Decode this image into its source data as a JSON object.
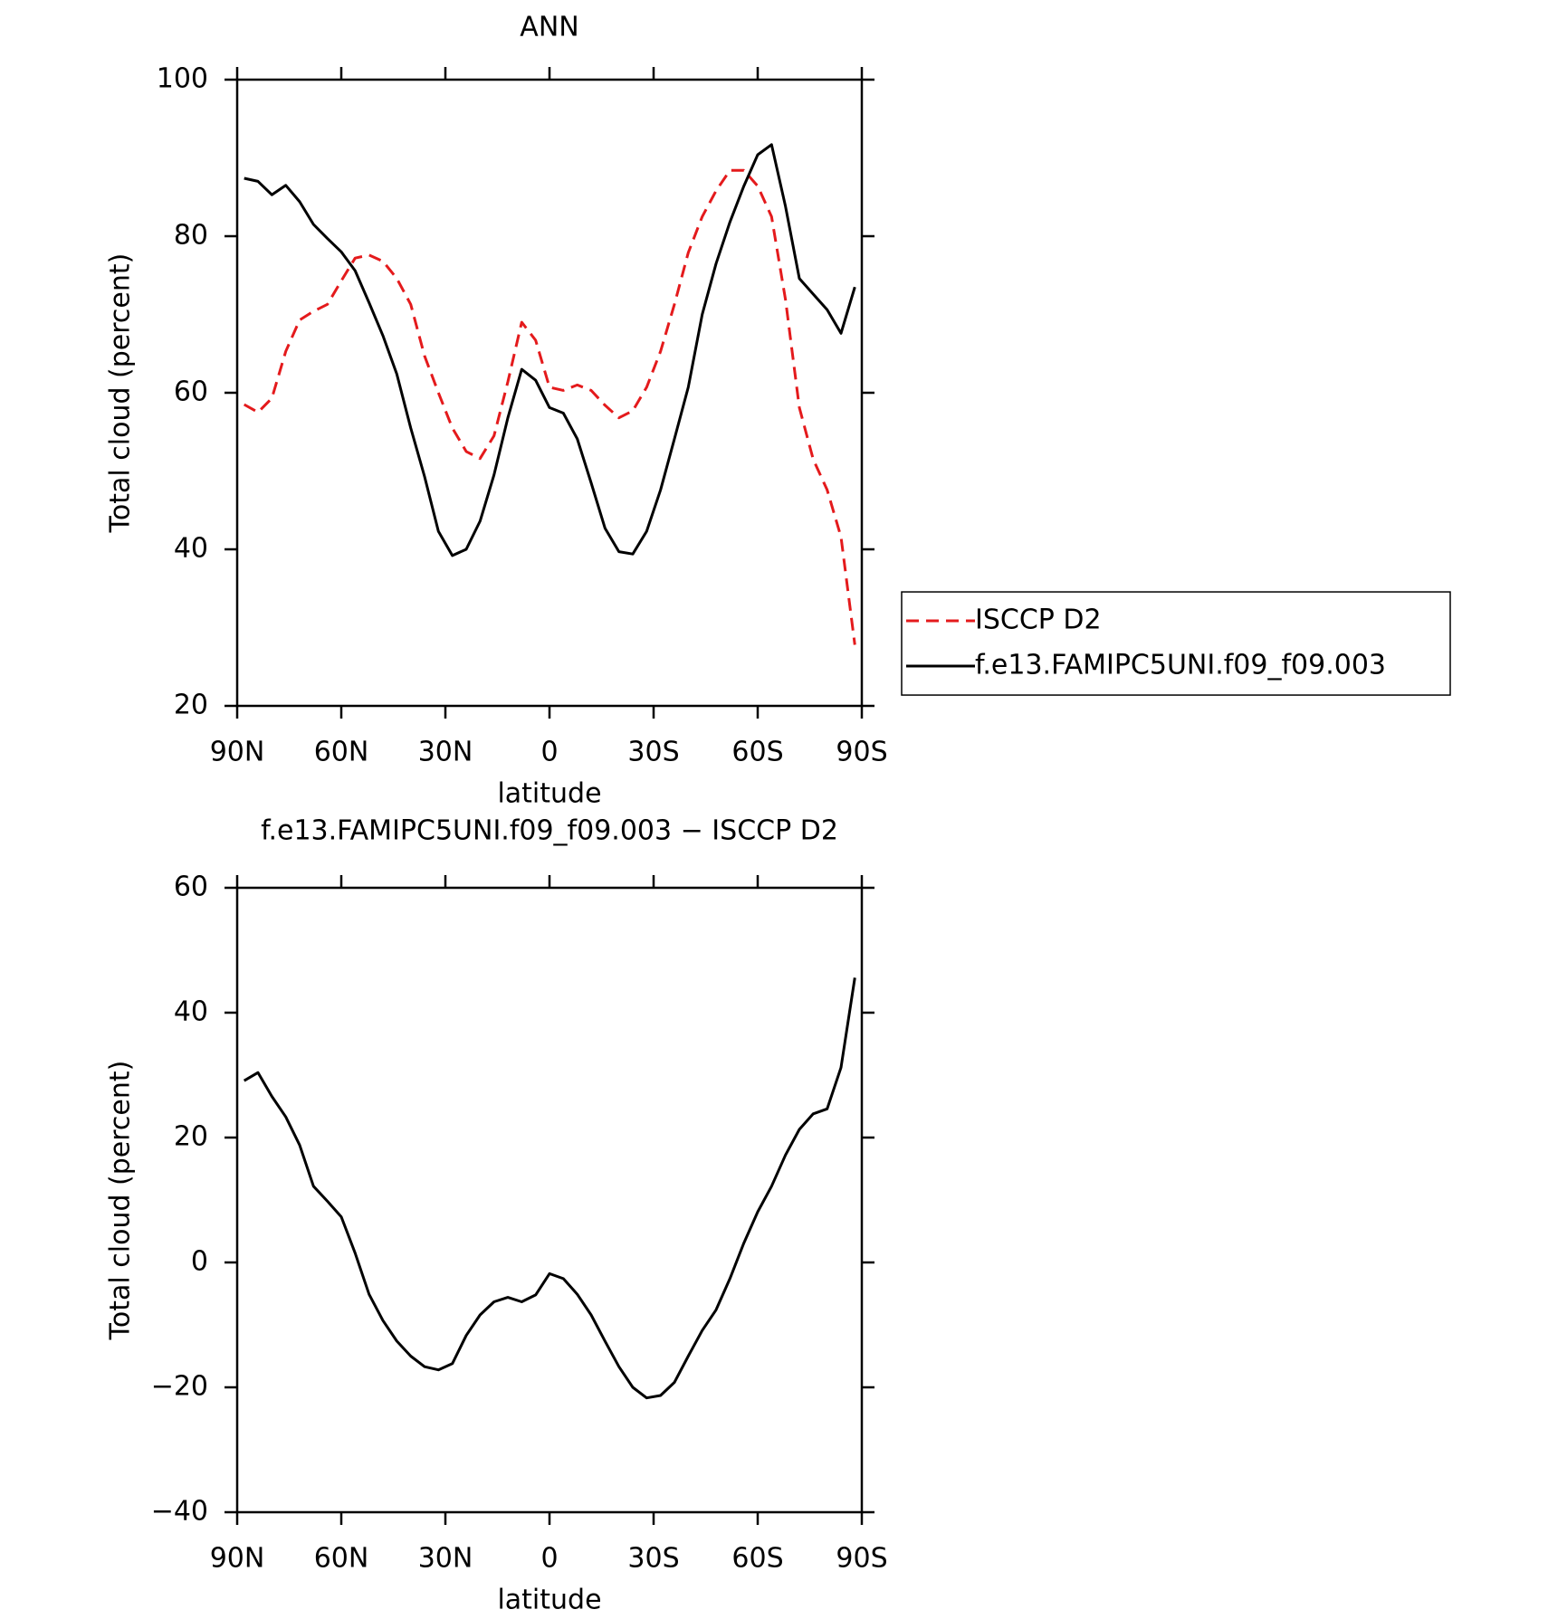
{
  "chart_data": [
    {
      "type": "line",
      "title": "ANN",
      "x_label": "latitude",
      "y_label": "Total cloud (percent)",
      "x": [
        88,
        84,
        80,
        76,
        72,
        68,
        64,
        60,
        56,
        52,
        48,
        44,
        40,
        36,
        32,
        28,
        24,
        20,
        16,
        12,
        8,
        4,
        0,
        -4,
        -8,
        -12,
        -16,
        -20,
        -24,
        -28,
        -32,
        -36,
        -40,
        -44,
        -48,
        -52,
        -56,
        -60,
        -64,
        -68,
        -72,
        -76,
        -80,
        -84,
        -88
      ],
      "xlim": [
        90,
        -90
      ],
      "xticks": [
        {
          "value": 90,
          "label": "90N"
        },
        {
          "value": 60,
          "label": "60N"
        },
        {
          "value": 30,
          "label": "30N"
        },
        0,
        {
          "value": -30,
          "label": "30S"
        },
        {
          "value": -60,
          "label": "60S"
        },
        {
          "value": -90,
          "label": "90S"
        }
      ],
      "ylim": [
        20,
        100
      ],
      "yticks": [
        20,
        40,
        60,
        80,
        100
      ],
      "legend": "right",
      "series": [
        {
          "name": "ISCCP D2",
          "color": "#e41a1c",
          "dashed": true,
          "values": [
            58.5,
            57.5,
            59.3,
            65.3,
            69.3,
            70.4,
            71.3,
            74.3,
            77.2,
            77.6,
            76.8,
            74.6,
            71.3,
            64.7,
            60,
            55.5,
            52.5,
            51.6,
            54.5,
            61.4,
            69.0,
            66.7,
            60.7,
            60.3,
            61.0,
            60.3,
            58.4,
            56.8,
            57.7,
            60.7,
            65.3,
            71.3,
            77.9,
            82.5,
            85.8,
            88.4,
            88.4,
            86.4,
            82.5,
            71.9,
            58.1,
            51.5,
            47.6,
            41.6,
            27.8
          ]
        },
        {
          "name": "f.e13.FAMIPC5UNI.f09_f09.003",
          "color": "#000000",
          "dashed": false,
          "values": [
            87.4,
            87,
            85.3,
            86.5,
            84.4,
            81.5,
            79.7,
            78.0,
            75.6,
            71.5,
            67.3,
            62.4,
            55.5,
            49.3,
            42.3,
            39.2,
            40,
            43.6,
            49.5,
            56.8,
            63.0,
            61.6,
            58.1,
            57.4,
            54.1,
            48.5,
            42.7,
            39.7,
            39.4,
            42.3,
            47.6,
            54.1,
            60.7,
            70,
            76.5,
            81.8,
            86.4,
            90.4,
            91.7,
            83.8,
            74.6,
            72.6,
            70.6,
            67.6,
            73.5
          ]
        }
      ]
    },
    {
      "type": "line",
      "title": "f.e13.FAMIPC5UNI.f09_f09.003 − ISCCP D2",
      "x_label": "latitude",
      "y_label": "Total cloud (percent)",
      "x": [
        88,
        84,
        80,
        76,
        72,
        68,
        64,
        60,
        56,
        52,
        48,
        44,
        40,
        36,
        32,
        28,
        24,
        20,
        16,
        12,
        8,
        4,
        0,
        -4,
        -8,
        -12,
        -16,
        -20,
        -24,
        -28,
        -32,
        -36,
        -40,
        -44,
        -48,
        -52,
        -56,
        -60,
        -64,
        -68,
        -72,
        -76,
        -80,
        -84,
        -88
      ],
      "xlim": [
        90,
        -90
      ],
      "xticks": [
        {
          "value": 90,
          "label": "90N"
        },
        {
          "value": 60,
          "label": "60N"
        },
        {
          "value": 30,
          "label": "30N"
        },
        0,
        {
          "value": -30,
          "label": "30S"
        },
        {
          "value": -60,
          "label": "60S"
        },
        {
          "value": -90,
          "label": "90S"
        }
      ],
      "ylim": [
        -40,
        60
      ],
      "yticks": [
        {
          "value": -40,
          "label": "−40"
        },
        {
          "value": -20,
          "label": "−20"
        },
        0,
        20,
        40,
        60
      ],
      "series": [
        {
          "color": "#000000",
          "dashed": false,
          "values": [
            29.1,
            30.4,
            26.6,
            23.3,
            18.8,
            12.2,
            9.8,
            7.3,
            1.5,
            -5.1,
            -9.3,
            -12.6,
            -15,
            -16.7,
            -17.2,
            -16.2,
            -11.7,
            -8.4,
            -6.3,
            -5.6,
            -6.3,
            -5.2,
            -1.8,
            -2.6,
            -5.1,
            -8.4,
            -12.6,
            -16.7,
            -20,
            -21.7,
            -21.3,
            -19.2,
            -15,
            -10.9,
            -7.6,
            -2.6,
            3.1,
            8.1,
            12.2,
            17.2,
            21.3,
            23.8,
            24.6,
            31.2,
            45.6
          ]
        }
      ]
    }
  ]
}
